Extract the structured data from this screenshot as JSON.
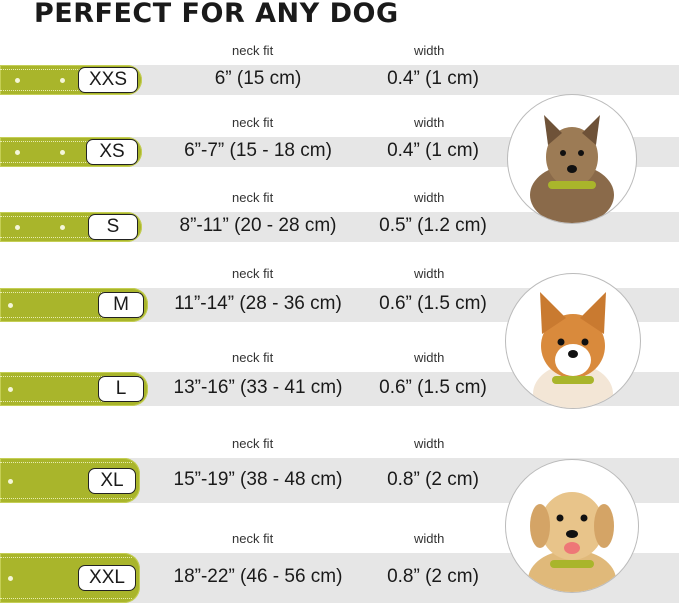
{
  "title": "PERFECT FOR ANY DOG",
  "neck_label": "neck fit",
  "width_label": "width",
  "collar_color": "#a9b52b",
  "sizes": [
    {
      "size": "XXS",
      "neck": "6” (15 cm)",
      "width": "0.4” (1 cm)"
    },
    {
      "size": "XS",
      "neck": "6”-7” (15 - 18 cm)",
      "width": "0.4” (1 cm)"
    },
    {
      "size": "S",
      "neck": "8”-11” (20 - 28 cm)",
      "width": "0.5” (1.2 cm)"
    },
    {
      "size": "M",
      "neck": "11”-14” (28 - 36 cm)",
      "width": "0.6” (1.5 cm)"
    },
    {
      "size": "L",
      "neck": "13”-16” (33 - 41 cm)",
      "width": "0.6” (1.5 cm)"
    },
    {
      "size": "XL",
      "neck": "15”-19” (38 - 48 cm)",
      "width": "0.8” (2 cm)"
    },
    {
      "size": "XXL",
      "neck": "18”-22” (46 - 56 cm)",
      "width": "0.8” (2 cm)"
    }
  ],
  "dogs": [
    "small-terrier-photo",
    "corgi-photo",
    "labrador-photo"
  ]
}
